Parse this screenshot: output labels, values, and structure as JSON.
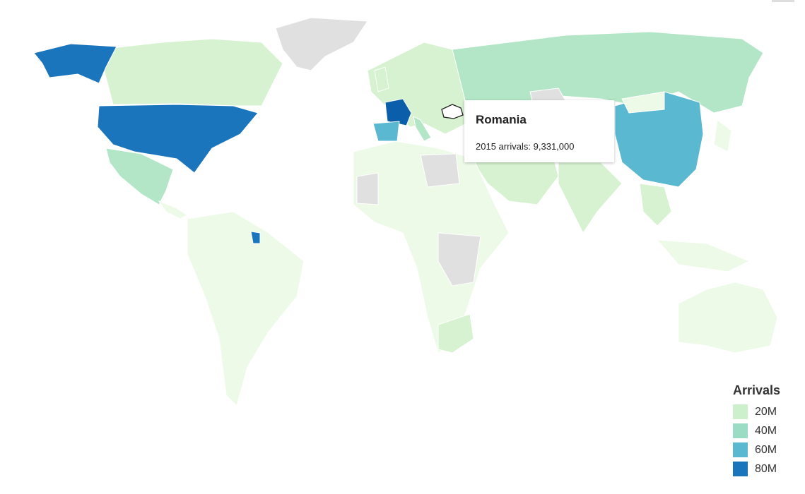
{
  "legend": {
    "title": "Arrivals",
    "items": [
      {
        "label": "20M",
        "color": "#cdf0cc"
      },
      {
        "label": "40M",
        "color": "#9adcc4"
      },
      {
        "label": "60M",
        "color": "#5ab9d0"
      },
      {
        "label": "80M",
        "color": "#1a75bd"
      }
    ]
  },
  "tooltip": {
    "country": "Romania",
    "text": "2015 arrivals: 9,331,000"
  },
  "colors": {
    "lowest": "#eefae8",
    "light": "#d6f2d0",
    "medium": "#b2e6c6",
    "high": "#5ab9d0",
    "highest": "#1a75bd",
    "top": "#0b5faa",
    "no_data": "#e0e0e0"
  }
}
